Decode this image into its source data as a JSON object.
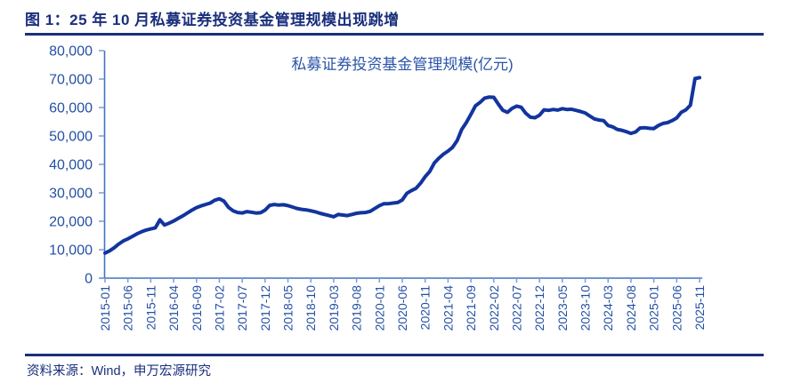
{
  "header": {
    "title": "图 1：25 年 10 月私募证券投资基金管理规模出现跳增"
  },
  "footer": {
    "source": "资料来源：Wind，申万宏源研究"
  },
  "colors": {
    "title_navy": "#1A2F7C",
    "series_line": "#12349E",
    "axis_line": "#4472C4",
    "tick_mark": "#7C9AD6",
    "axis_label_text": "#2450A4",
    "inner_title_text": "#2B55A8",
    "background": "#FFFFFF"
  },
  "chart_data": {
    "type": "line",
    "title": "私募证券投资基金管理规模(亿元)",
    "xlabel": "",
    "ylabel": "",
    "ylim": [
      0,
      80000
    ],
    "y_ticks": [
      0,
      10000,
      20000,
      30000,
      40000,
      50000,
      60000,
      70000,
      80000
    ],
    "grid": false,
    "legend_position": "top-center-inside",
    "x_tick_interval": 5,
    "x_tick_labels": [
      "2015-01",
      "2015-06",
      "2015-11",
      "2016-04",
      "2016-09",
      "2017-02",
      "2017-07",
      "2017-12",
      "2018-05",
      "2018-10",
      "2019-03",
      "2019-08",
      "2020-01",
      "2020-06",
      "2020-11",
      "2021-04",
      "2021-09",
      "2022-02",
      "2022-07",
      "2022-12",
      "2023-05",
      "2023-10",
      "2024-03",
      "2024-08",
      "2025-01",
      "2025-06",
      "2025-11"
    ],
    "x": [
      "2015-01",
      "2015-02",
      "2015-03",
      "2015-04",
      "2015-05",
      "2015-06",
      "2015-07",
      "2015-08",
      "2015-09",
      "2015-10",
      "2015-11",
      "2015-12",
      "2016-01",
      "2016-02",
      "2016-03",
      "2016-04",
      "2016-05",
      "2016-06",
      "2016-07",
      "2016-08",
      "2016-09",
      "2016-10",
      "2016-11",
      "2016-12",
      "2017-01",
      "2017-02",
      "2017-03",
      "2017-04",
      "2017-05",
      "2017-06",
      "2017-07",
      "2017-08",
      "2017-09",
      "2017-10",
      "2017-11",
      "2017-12",
      "2018-01",
      "2018-02",
      "2018-03",
      "2018-04",
      "2018-05",
      "2018-06",
      "2018-07",
      "2018-08",
      "2018-09",
      "2018-10",
      "2018-11",
      "2018-12",
      "2019-01",
      "2019-02",
      "2019-03",
      "2019-04",
      "2019-05",
      "2019-06",
      "2019-07",
      "2019-08",
      "2019-09",
      "2019-10",
      "2019-11",
      "2019-12",
      "2020-01",
      "2020-02",
      "2020-03",
      "2020-04",
      "2020-05",
      "2020-06",
      "2020-07",
      "2020-08",
      "2020-09",
      "2020-10",
      "2020-11",
      "2020-12",
      "2021-01",
      "2021-02",
      "2021-03",
      "2021-04",
      "2021-05",
      "2021-06",
      "2021-07",
      "2021-08",
      "2021-09",
      "2021-10",
      "2021-11",
      "2021-12",
      "2022-01",
      "2022-02",
      "2022-03",
      "2022-04",
      "2022-05",
      "2022-06",
      "2022-07",
      "2022-08",
      "2022-09",
      "2022-10",
      "2022-11",
      "2022-12",
      "2023-01",
      "2023-02",
      "2023-03",
      "2023-04",
      "2023-05",
      "2023-06",
      "2023-07",
      "2023-08",
      "2023-09",
      "2023-10",
      "2023-11",
      "2023-12",
      "2024-01",
      "2024-02",
      "2024-03",
      "2024-04",
      "2024-05",
      "2024-06",
      "2024-07",
      "2024-08",
      "2024-09",
      "2024-10",
      "2024-11",
      "2024-12",
      "2025-01",
      "2025-02",
      "2025-03",
      "2025-04",
      "2025-05",
      "2025-06",
      "2025-07",
      "2025-08",
      "2025-09",
      "2025-10",
      "2025-11"
    ],
    "values": [
      8800,
      9600,
      10700,
      12000,
      13100,
      13800,
      14700,
      15600,
      16300,
      16900,
      17300,
      17700,
      20500,
      18700,
      19300,
      20100,
      21000,
      21900,
      22900,
      23900,
      24800,
      25400,
      25900,
      26400,
      27400,
      27900,
      27100,
      24900,
      23700,
      23100,
      22900,
      23400,
      23200,
      22900,
      23000,
      23900,
      25600,
      25900,
      25700,
      25800,
      25500,
      25000,
      24500,
      24200,
      24000,
      23700,
      23300,
      22800,
      22400,
      22000,
      21600,
      22400,
      22200,
      22000,
      22400,
      22800,
      23000,
      23100,
      23500,
      24500,
      25500,
      26200,
      26200,
      26400,
      26600,
      27500,
      29800,
      30800,
      31600,
      33400,
      35700,
      37500,
      40500,
      42200,
      43600,
      44700,
      46000,
      48400,
      52300,
      54700,
      57600,
      60600,
      61800,
      63300,
      63700,
      63600,
      61200,
      59000,
      58300,
      59700,
      60500,
      60100,
      58000,
      56600,
      56400,
      57300,
      59200,
      59000,
      59300,
      59100,
      59600,
      59300,
      59400,
      59000,
      58600,
      58100,
      57000,
      56000,
      55600,
      55400,
      53700,
      53200,
      52300,
      52000,
      51500,
      50900,
      51400,
      52800,
      52900,
      52700,
      52600,
      53700,
      54400,
      54700,
      55400,
      56300,
      58300,
      59200,
      60800,
      70200,
      70500
    ]
  }
}
